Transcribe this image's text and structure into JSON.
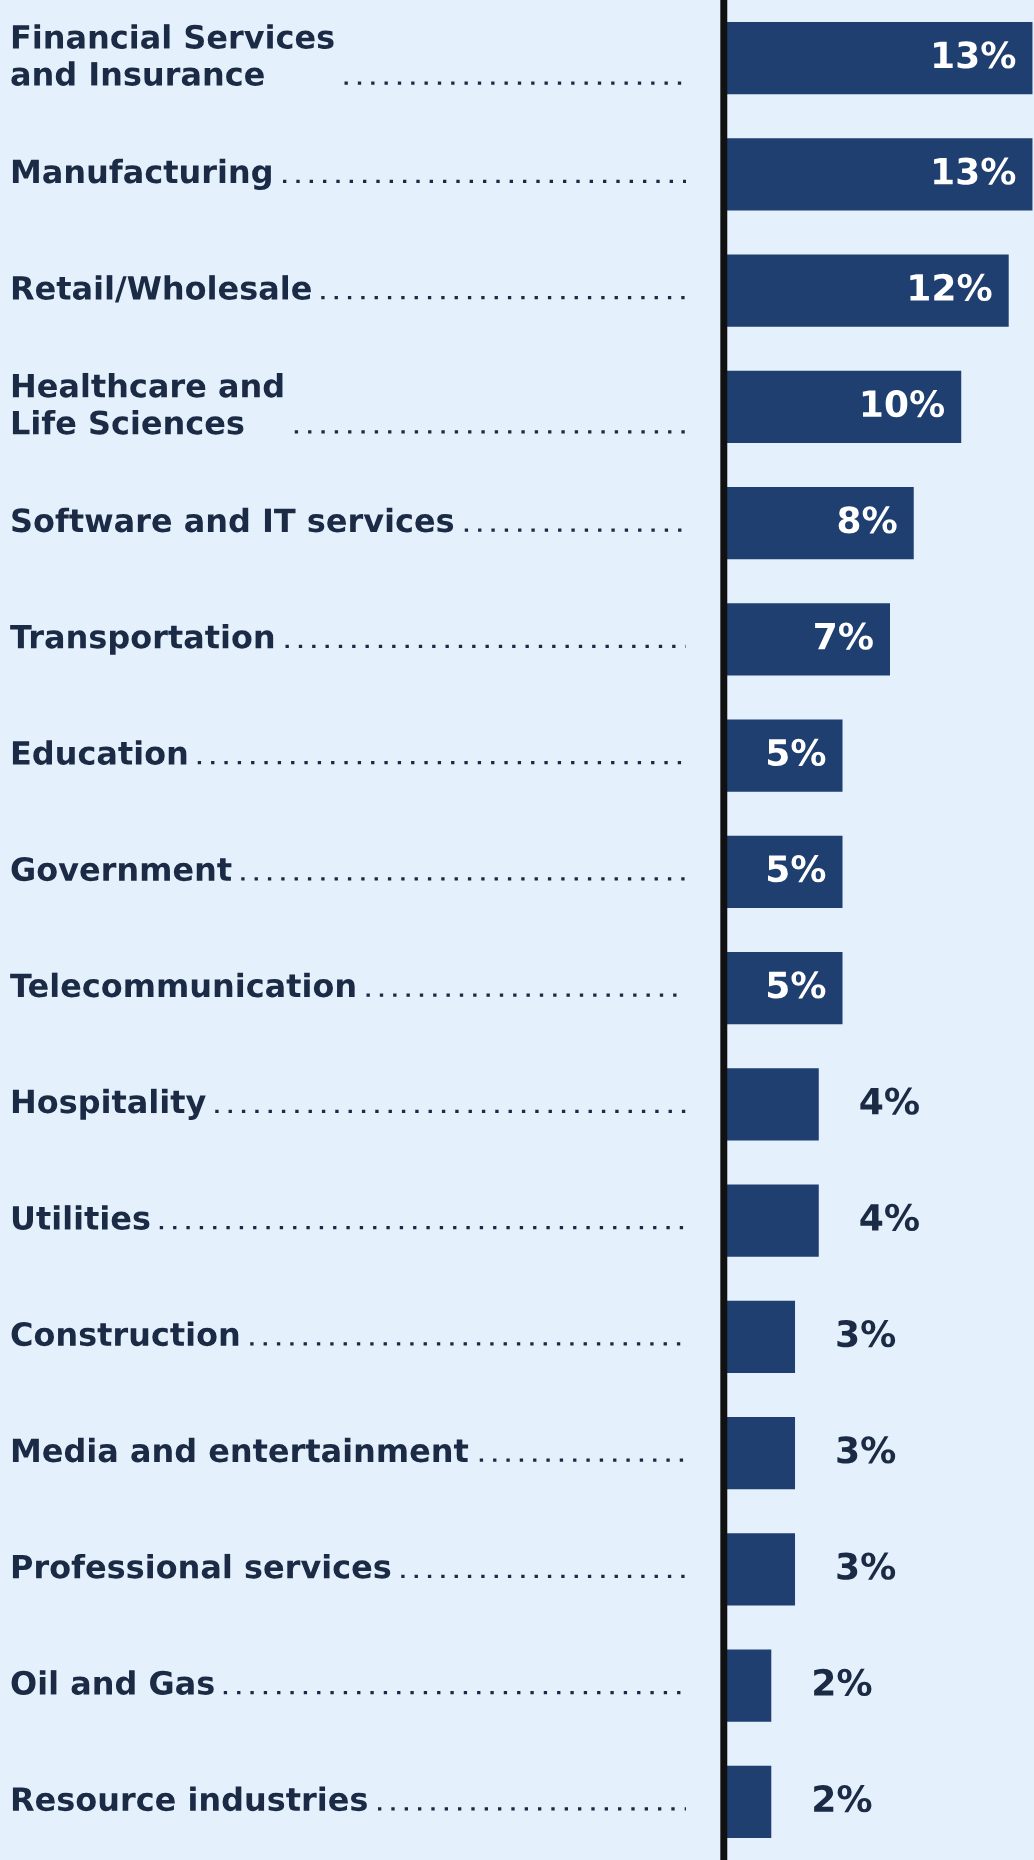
{
  "chart_data": {
    "type": "bar",
    "orientation": "horizontal",
    "categories": [
      "Financial Services\nand Insurance",
      "Manufacturing",
      "Retail/Wholesale",
      "Healthcare and\nLife Sciences",
      "Software and IT services",
      "Transportation",
      "Education",
      "Government",
      "Telecommunication",
      "Hospitality",
      "Utilities",
      "Construction",
      "Media and entertainment",
      "Professional services",
      "Oil and Gas",
      "Resource industries"
    ],
    "values": [
      13,
      13,
      12,
      10,
      8,
      7,
      5,
      5,
      5,
      4,
      4,
      3,
      3,
      3,
      2,
      2
    ],
    "value_labels": [
      "13%",
      "13%",
      "12%",
      "10%",
      "8%",
      "7%",
      "5%",
      "5%",
      "5%",
      "4%",
      "4%",
      "3%",
      "3%",
      "3%",
      "2%",
      "2%"
    ],
    "color": "#1f3f70",
    "grid": false,
    "legend": false
  }
}
